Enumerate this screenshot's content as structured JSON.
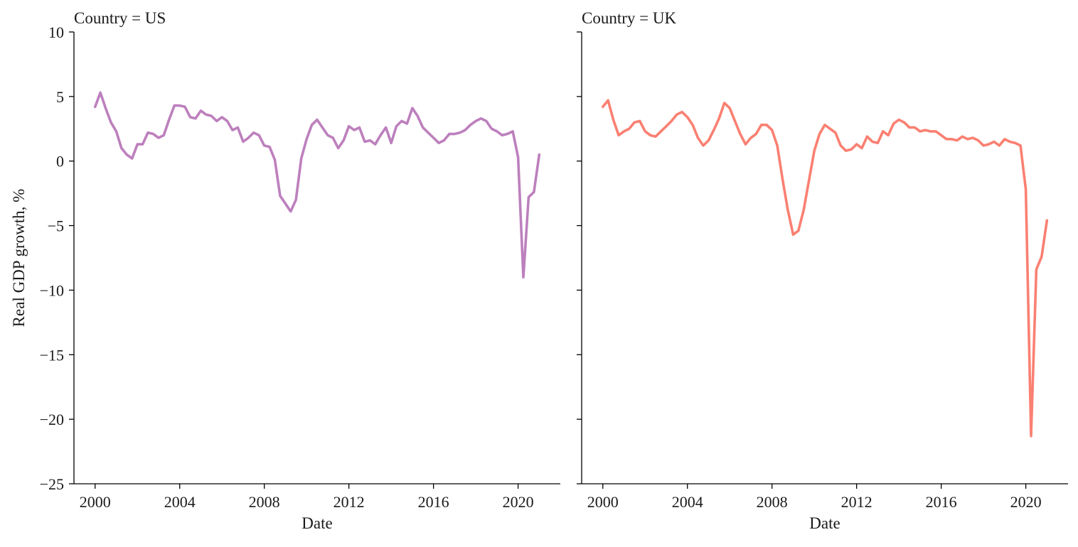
{
  "chart_data": [
    {
      "type": "line",
      "title": "Country = US",
      "xlabel": "Date",
      "ylabel": "Real GDP growth, %",
      "xlim": [
        "1999-01-01",
        "2021-12-31"
      ],
      "ylim": [
        -25,
        10
      ],
      "xticks": [
        "2000-01-01",
        "2004-01-01",
        "2008-01-01",
        "2012-01-01",
        "2016-01-01",
        "2020-01-01"
      ],
      "xtick_labels": [
        "2000",
        "2004",
        "2008",
        "2012",
        "2016",
        "2020"
      ],
      "yticks": [
        10,
        5,
        0,
        -5,
        -10,
        -15,
        -20,
        -25
      ],
      "ytick_labels": [
        "10",
        "5",
        "0",
        "−5",
        "−10",
        "−15",
        "−20",
        "−25"
      ],
      "grid": false,
      "color": "#bd80bd",
      "series": [
        {
          "x": [
            "2000-01-01",
            "2000-04-01",
            "2000-07-01",
            "2000-10-01",
            "2001-01-01",
            "2001-04-01",
            "2001-07-01",
            "2001-10-01",
            "2002-01-01",
            "2002-04-01",
            "2002-07-01",
            "2002-10-01",
            "2003-01-01",
            "2003-04-01",
            "2003-07-01",
            "2003-10-01",
            "2004-01-01",
            "2004-04-01",
            "2004-07-01",
            "2004-10-01",
            "2005-01-01",
            "2005-04-01",
            "2005-07-01",
            "2005-10-01",
            "2006-01-01",
            "2006-04-01",
            "2006-07-01",
            "2006-10-01",
            "2007-01-01",
            "2007-04-01",
            "2007-07-01",
            "2007-10-01",
            "2008-01-01",
            "2008-04-01",
            "2008-07-01",
            "2008-10-01",
            "2009-01-01",
            "2009-04-01",
            "2009-07-01",
            "2009-10-01",
            "2010-01-01",
            "2010-04-01",
            "2010-07-01",
            "2010-10-01",
            "2011-01-01",
            "2011-04-01",
            "2011-07-01",
            "2011-10-01",
            "2012-01-01",
            "2012-04-01",
            "2012-07-01",
            "2012-10-01",
            "2013-01-01",
            "2013-04-01",
            "2013-07-01",
            "2013-10-01",
            "2014-01-01",
            "2014-04-01",
            "2014-07-01",
            "2014-10-01",
            "2015-01-01",
            "2015-04-01",
            "2015-07-01",
            "2015-10-01",
            "2016-01-01",
            "2016-04-01",
            "2016-07-01",
            "2016-10-01",
            "2017-01-01",
            "2017-04-01",
            "2017-07-01",
            "2017-10-01",
            "2018-01-01",
            "2018-04-01",
            "2018-07-01",
            "2018-10-01",
            "2019-01-01",
            "2019-04-01",
            "2019-07-01",
            "2019-10-01",
            "2020-01-01",
            "2020-04-01",
            "2020-07-01",
            "2020-10-01",
            "2021-01-01"
          ],
          "y": [
            4.2,
            5.3,
            4.1,
            3.0,
            2.3,
            1.0,
            0.5,
            0.2,
            1.3,
            1.3,
            2.2,
            2.1,
            1.8,
            2.0,
            3.2,
            4.3,
            4.3,
            4.2,
            3.4,
            3.3,
            3.9,
            3.6,
            3.5,
            3.1,
            3.4,
            3.1,
            2.4,
            2.6,
            1.5,
            1.8,
            2.2,
            2.0,
            1.2,
            1.1,
            0.1,
            -2.7,
            -3.3,
            -3.9,
            -3.0,
            0.2,
            1.7,
            2.8,
            3.2,
            2.6,
            2.0,
            1.8,
            1.0,
            1.6,
            2.7,
            2.4,
            2.6,
            1.5,
            1.6,
            1.3,
            2.0,
            2.6,
            1.4,
            2.7,
            3.1,
            2.9,
            4.1,
            3.5,
            2.6,
            2.2,
            1.8,
            1.4,
            1.6,
            2.1,
            2.1,
            2.2,
            2.4,
            2.8,
            3.1,
            3.3,
            3.1,
            2.5,
            2.3,
            2.0,
            2.1,
            2.3,
            0.3,
            -9.0,
            -2.8,
            -2.4,
            0.5
          ]
        }
      ]
    },
    {
      "type": "line",
      "title": "Country = UK",
      "xlabel": "Date",
      "ylabel": "",
      "xlim": [
        "1999-01-01",
        "2021-12-31"
      ],
      "ylim": [
        -25,
        10
      ],
      "xticks": [
        "2000-01-01",
        "2004-01-01",
        "2008-01-01",
        "2012-01-01",
        "2016-01-01",
        "2020-01-01"
      ],
      "xtick_labels": [
        "2000",
        "2004",
        "2008",
        "2012",
        "2016",
        "2020"
      ],
      "yticks": [
        10,
        5,
        0,
        -5,
        -10,
        -15,
        -20,
        -25
      ],
      "ytick_labels": [],
      "grid": false,
      "color": "#fa8072",
      "series": [
        {
          "x": [
            "2000-01-01",
            "2000-04-01",
            "2000-07-01",
            "2000-10-01",
            "2001-01-01",
            "2001-04-01",
            "2001-07-01",
            "2001-10-01",
            "2002-01-01",
            "2002-04-01",
            "2002-07-01",
            "2002-10-01",
            "2003-01-01",
            "2003-04-01",
            "2003-07-01",
            "2003-10-01",
            "2004-01-01",
            "2004-04-01",
            "2004-07-01",
            "2004-10-01",
            "2005-01-01",
            "2005-04-01",
            "2005-07-01",
            "2005-10-01",
            "2006-01-01",
            "2006-04-01",
            "2006-07-01",
            "2006-10-01",
            "2007-01-01",
            "2007-04-01",
            "2007-07-01",
            "2007-10-01",
            "2008-01-01",
            "2008-04-01",
            "2008-07-01",
            "2008-10-01",
            "2009-01-01",
            "2009-04-01",
            "2009-07-01",
            "2009-10-01",
            "2010-01-01",
            "2010-04-01",
            "2010-07-01",
            "2010-10-01",
            "2011-01-01",
            "2011-04-01",
            "2011-07-01",
            "2011-10-01",
            "2012-01-01",
            "2012-04-01",
            "2012-07-01",
            "2012-10-01",
            "2013-01-01",
            "2013-04-01",
            "2013-07-01",
            "2013-10-01",
            "2014-01-01",
            "2014-04-01",
            "2014-07-01",
            "2014-10-01",
            "2015-01-01",
            "2015-04-01",
            "2015-07-01",
            "2015-10-01",
            "2016-01-01",
            "2016-04-01",
            "2016-07-01",
            "2016-10-01",
            "2017-01-01",
            "2017-04-01",
            "2017-07-01",
            "2017-10-01",
            "2018-01-01",
            "2018-04-01",
            "2018-07-01",
            "2018-10-01",
            "2019-01-01",
            "2019-04-01",
            "2019-07-01",
            "2019-10-01",
            "2020-01-01",
            "2020-04-01",
            "2020-07-01",
            "2020-10-01",
            "2021-01-01"
          ],
          "y": [
            4.2,
            4.7,
            3.2,
            2.0,
            2.3,
            2.5,
            3.0,
            3.1,
            2.3,
            2.0,
            1.9,
            2.3,
            2.7,
            3.1,
            3.6,
            3.8,
            3.4,
            2.8,
            1.8,
            1.2,
            1.6,
            2.4,
            3.3,
            4.5,
            4.1,
            3.1,
            2.1,
            1.3,
            1.8,
            2.1,
            2.8,
            2.8,
            2.4,
            1.2,
            -1.4,
            -3.8,
            -5.7,
            -5.4,
            -3.8,
            -1.5,
            0.8,
            2.1,
            2.8,
            2.5,
            2.2,
            1.2,
            0.8,
            0.9,
            1.3,
            1.0,
            1.9,
            1.5,
            1.4,
            2.3,
            2.0,
            2.9,
            3.2,
            3.0,
            2.6,
            2.6,
            2.3,
            2.4,
            2.3,
            2.3,
            2.0,
            1.7,
            1.7,
            1.6,
            1.9,
            1.7,
            1.8,
            1.6,
            1.2,
            1.3,
            1.5,
            1.2,
            1.7,
            1.5,
            1.4,
            1.2,
            -2.2,
            -21.3,
            -8.4,
            -7.4,
            -4.6
          ]
        }
      ]
    }
  ]
}
